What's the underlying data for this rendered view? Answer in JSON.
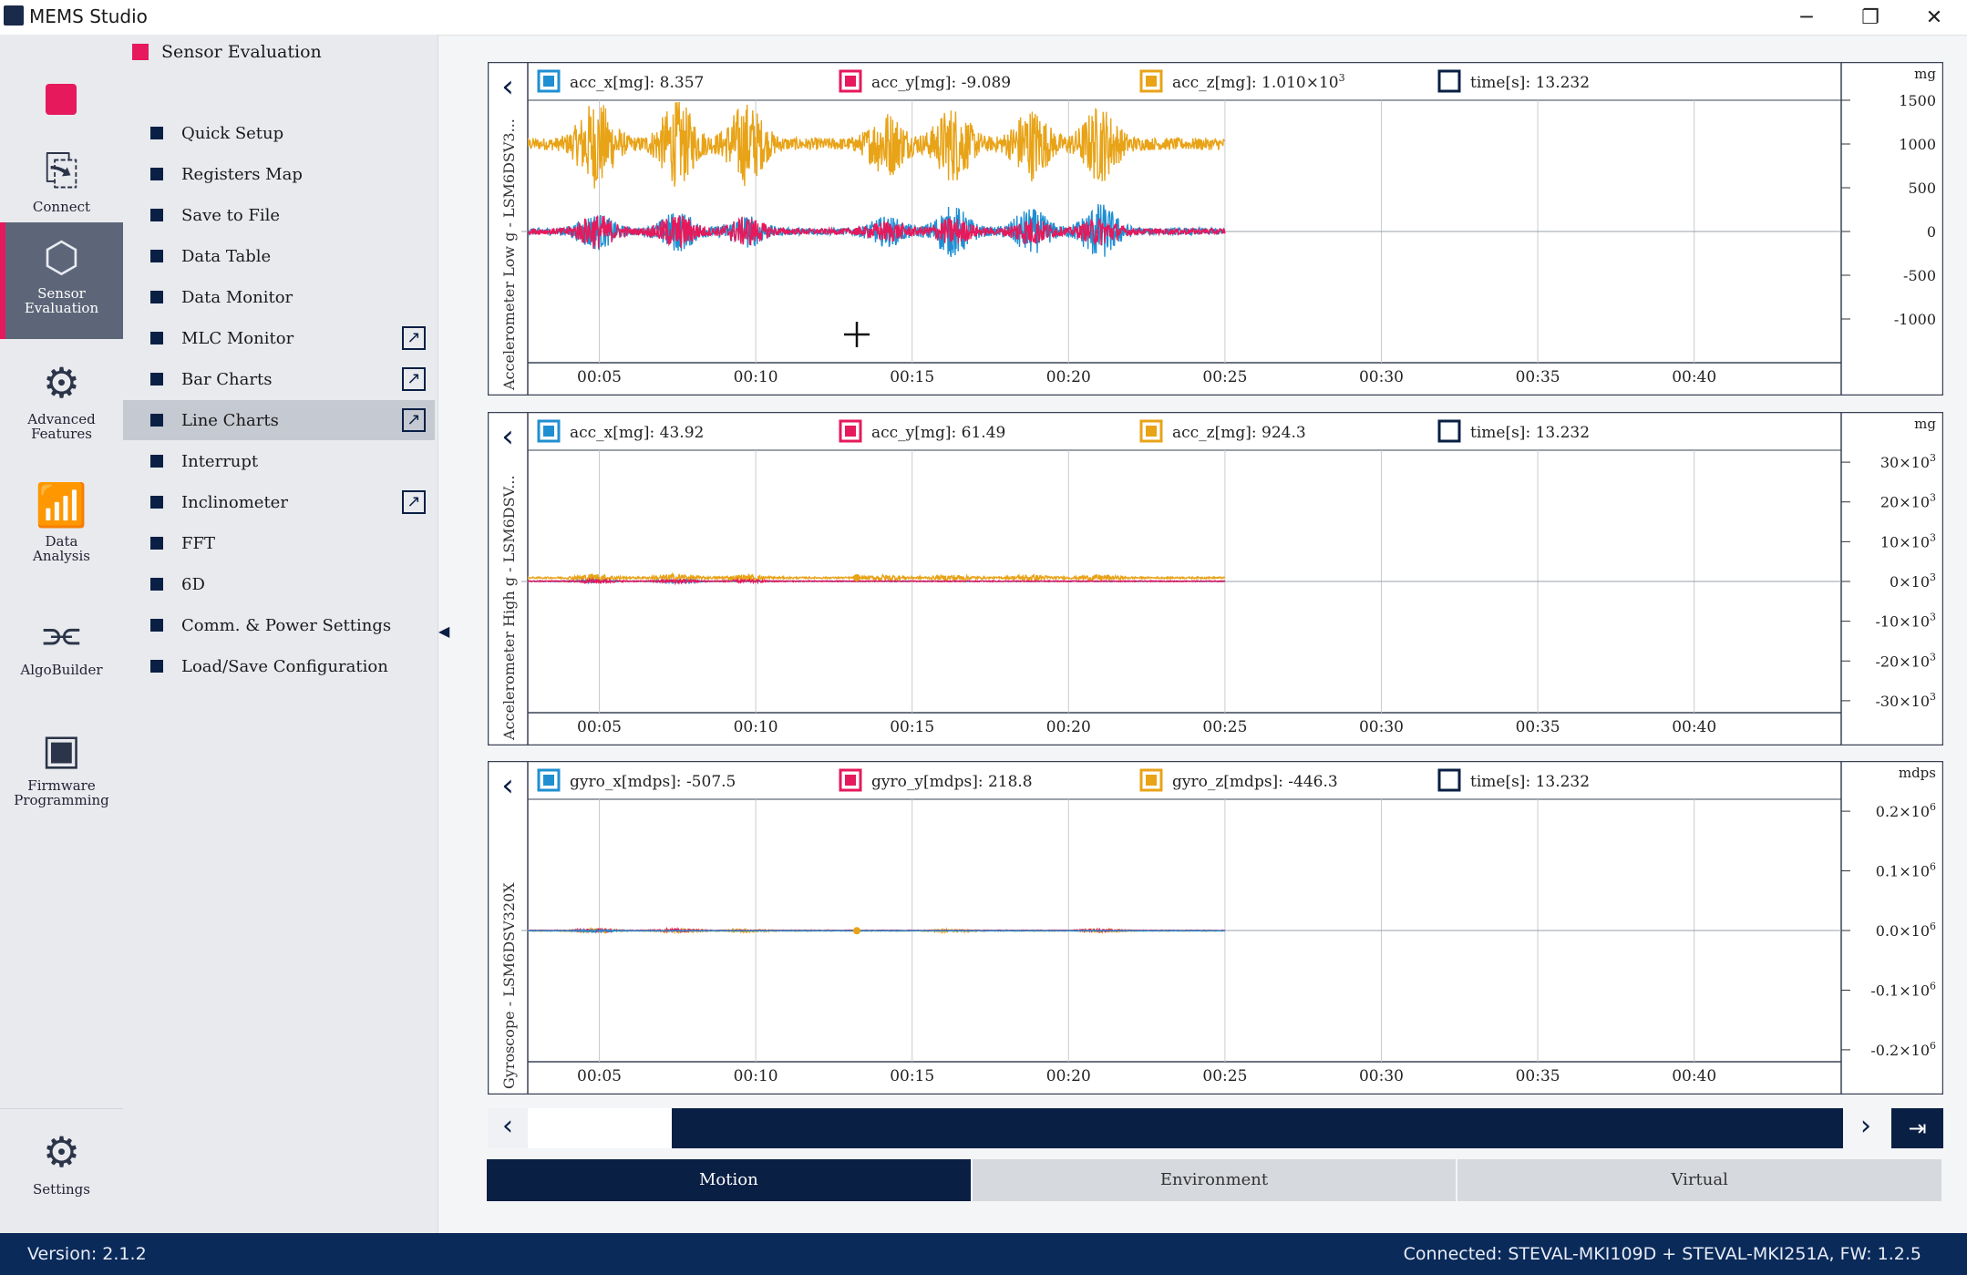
{
  "window": {
    "title": "MEMS Studio"
  },
  "iconbar": {
    "items": [
      {
        "label": "Connect",
        "icon": "connect-icon"
      },
      {
        "label": "Sensor\nEvaluation",
        "icon": "sensor-icon"
      },
      {
        "label": "Advanced\nFeatures",
        "icon": "gears-icon"
      },
      {
        "label": "Data\nAnalysis",
        "icon": "bar-chart-icon"
      },
      {
        "label": "AlgoBuilder",
        "icon": "flow-icon"
      },
      {
        "label": "Firmware\nProgramming",
        "icon": "chip-icon"
      },
      {
        "label": "Settings",
        "icon": "settings-icon"
      }
    ]
  },
  "menu": {
    "header": "Sensor Evaluation",
    "items": [
      {
        "label": "Quick Setup",
        "ext": false
      },
      {
        "label": "Registers Map",
        "ext": false
      },
      {
        "label": "Save to File",
        "ext": false
      },
      {
        "label": "Data Table",
        "ext": false
      },
      {
        "label": "Data Monitor",
        "ext": false
      },
      {
        "label": "MLC Monitor",
        "ext": true
      },
      {
        "label": "Bar Charts",
        "ext": true
      },
      {
        "label": "Line Charts",
        "ext": true
      },
      {
        "label": "Interrupt",
        "ext": false
      },
      {
        "label": "Inclinometer",
        "ext": true
      },
      {
        "label": "FFT",
        "ext": false
      },
      {
        "label": "6D",
        "ext": false
      },
      {
        "label": "Comm. & Power Settings",
        "ext": false
      },
      {
        "label": "Load/Save Configuration",
        "ext": false
      }
    ],
    "active_index": 7
  },
  "colors": {
    "x": "#1f8fd2",
    "y": "#e5195b",
    "z": "#e8a317",
    "navy": "#0a1f44"
  },
  "chart_data": [
    {
      "type": "line",
      "title": "Accelerometer Low g - LSM6DSV3...",
      "unit": "mg",
      "legend": [
        {
          "label": "acc_x[mg]: 8.357",
          "color": "#1f8fd2"
        },
        {
          "label": "acc_y[mg]: -9.089",
          "color": "#e5195b"
        },
        {
          "label": "acc_z[mg]: 1.010×10",
          "sup": "3",
          "color": "#e8a317"
        },
        {
          "label": "time[s]: 13.232",
          "color": "#ffffff"
        }
      ],
      "yticks": [
        {
          "label": "1500",
          "sup": ""
        },
        {
          "label": "1000",
          "sup": ""
        },
        {
          "label": "500",
          "sup": ""
        },
        {
          "label": "0",
          "sup": ""
        },
        {
          "label": "-500",
          "sup": ""
        },
        {
          "label": "-1000",
          "sup": ""
        }
      ],
      "ylim": [
        -1500,
        1500
      ],
      "xticks": [
        "00:05",
        "00:10",
        "00:15",
        "00:20",
        "00:25",
        "00:30",
        "00:35",
        "00:40"
      ],
      "xlim": [
        2.8,
        44.7
      ],
      "data_end": 25,
      "series": [
        {
          "name": "acc_z",
          "color": "#e8a317",
          "baseline": 1000,
          "bursts": [
            [
              4.9,
              450
            ],
            [
              7.5,
              430
            ],
            [
              9.7,
              420
            ],
            [
              14.2,
              320
            ],
            [
              16.3,
              380
            ],
            [
              18.8,
              360
            ],
            [
              21.0,
              380
            ]
          ],
          "noise": 70
        },
        {
          "name": "acc_x",
          "color": "#1f8fd2",
          "baseline": 0,
          "bursts": [
            [
              4.9,
              180
            ],
            [
              7.5,
              200
            ],
            [
              9.7,
              150
            ],
            [
              14.2,
              140
            ],
            [
              16.3,
              260
            ],
            [
              18.8,
              230
            ],
            [
              21.0,
              290
            ]
          ],
          "noise": 40
        },
        {
          "name": "acc_y",
          "color": "#e5195b",
          "baseline": 0,
          "bursts": [
            [
              4.9,
              170
            ],
            [
              7.5,
              170
            ],
            [
              9.7,
              140
            ],
            [
              14.2,
              90
            ],
            [
              16.3,
              130
            ],
            [
              18.8,
              130
            ],
            [
              21.0,
              130
            ]
          ],
          "noise": 35
        }
      ]
    },
    {
      "type": "line",
      "title": "Accelerometer High g - LSM6DSV...",
      "unit": "mg",
      "legend": [
        {
          "label": "acc_x[mg]: 43.92",
          "color": "#1f8fd2"
        },
        {
          "label": "acc_y[mg]: 61.49",
          "color": "#e5195b"
        },
        {
          "label": "acc_z[mg]: 924.3",
          "color": "#e8a317"
        },
        {
          "label": "time[s]: 13.232",
          "color": "#ffffff"
        }
      ],
      "yticks": [
        {
          "label": "30×10",
          "sup": "3"
        },
        {
          "label": "20×10",
          "sup": "3"
        },
        {
          "label": "10×10",
          "sup": "3"
        },
        {
          "label": "0×10",
          "sup": "3"
        },
        {
          "label": "-10×10",
          "sup": "3"
        },
        {
          "label": "-20×10",
          "sup": "3"
        },
        {
          "label": "-30×10",
          "sup": "3"
        }
      ],
      "ylim": [
        -33000,
        33000
      ],
      "xticks": [
        "00:05",
        "00:10",
        "00:15",
        "00:20",
        "00:25",
        "00:30",
        "00:35",
        "00:40"
      ],
      "xlim": [
        2.8,
        44.7
      ],
      "data_end": 25,
      "series": [
        {
          "name": "acc_z",
          "color": "#e8a317",
          "baseline": 924,
          "bursts": [
            [
              4.9,
              900
            ],
            [
              7.5,
              900
            ],
            [
              9.7,
              700
            ],
            [
              14.2,
              600
            ],
            [
              16.3,
              600
            ],
            [
              18.8,
              600
            ],
            [
              21.0,
              600
            ]
          ],
          "noise": 200
        },
        {
          "name": "acc_x",
          "color": "#1f8fd2",
          "baseline": 44,
          "bursts": [
            [
              4.9,
              300
            ],
            [
              7.5,
              300
            ]
          ],
          "noise": 100
        },
        {
          "name": "acc_y",
          "color": "#e5195b",
          "baseline": 61,
          "bursts": [
            [
              4.9,
              400
            ],
            [
              7.5,
              400
            ],
            [
              9.7,
              300
            ]
          ],
          "noise": 120
        }
      ]
    },
    {
      "type": "line",
      "title": "Gyroscope - LSM6DSV320X",
      "unit": "mdps",
      "legend": [
        {
          "label": "gyro_x[mdps]: -507.5",
          "color": "#1f8fd2"
        },
        {
          "label": "gyro_y[mdps]: 218.8",
          "color": "#e5195b"
        },
        {
          "label": "gyro_z[mdps]: -446.3",
          "color": "#e8a317"
        },
        {
          "label": "time[s]: 13.232",
          "color": "#ffffff"
        }
      ],
      "yticks": [
        {
          "label": "0.2×10",
          "sup": "6"
        },
        {
          "label": "0.1×10",
          "sup": "6"
        },
        {
          "label": "0.0×10",
          "sup": "6"
        },
        {
          "label": "-0.1×10",
          "sup": "6"
        },
        {
          "label": "-0.2×10",
          "sup": "6"
        }
      ],
      "ylim": [
        -250000,
        250000
      ],
      "xticks": [
        "00:05",
        "00:10",
        "00:15",
        "00:20",
        "00:25",
        "00:30",
        "00:35",
        "00:40"
      ],
      "xlim": [
        2.8,
        44.7
      ],
      "data_end": 25,
      "series": [
        {
          "name": "gyro_z",
          "color": "#e8a317",
          "baseline": -446,
          "bursts": [
            [
              4.9,
              3000
            ],
            [
              7.5,
              3000
            ],
            [
              9.7,
              2500
            ],
            [
              16.3,
              2500
            ],
            [
              21.0,
              2500
            ]
          ],
          "noise": 800
        },
        {
          "name": "gyro_y",
          "color": "#e5195b",
          "baseline": 219,
          "bursts": [
            [
              4.9,
              2500
            ],
            [
              7.5,
              2500
            ],
            [
              21.0,
              2000
            ]
          ],
          "noise": 600
        },
        {
          "name": "gyro_x",
          "color": "#1f8fd2",
          "baseline": -508,
          "bursts": [
            [
              4.9,
              2000
            ]
          ],
          "noise": 500
        }
      ]
    }
  ],
  "tabs": [
    "Motion",
    "Environment",
    "Virtual"
  ],
  "active_tab": 0,
  "status": {
    "version": "Version: 2.1.2",
    "connection": "Connected:   STEVAL-MKI109D + STEVAL-MKI251A, FW: 1.2.5"
  }
}
